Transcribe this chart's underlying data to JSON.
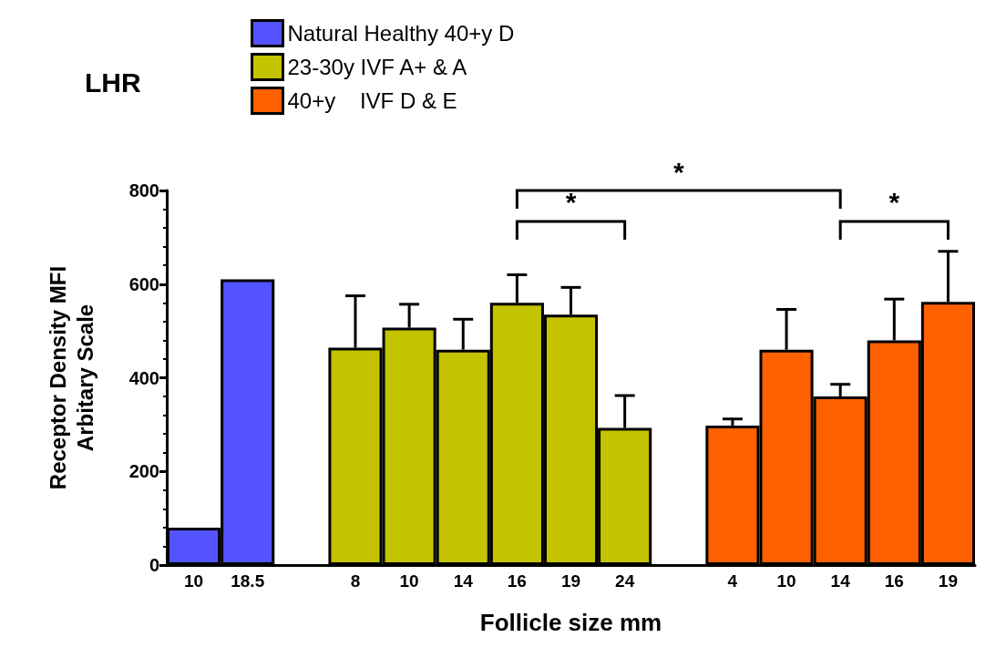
{
  "chart_data": {
    "type": "bar",
    "title": "LHR",
    "xlabel": "Follicle size mm",
    "ylabel": "Receptor Density MFI\nArbitary Scale",
    "categories": [
      "10",
      "18.5",
      null,
      "8",
      "10",
      "14",
      "16",
      "19",
      "24",
      null,
      "4",
      "10",
      "14",
      "16",
      "19"
    ],
    "series": [
      {
        "name": "Natural Healthy 40+y D",
        "color": "#5353ff",
        "values": [
          80,
          610,
          null,
          null,
          null,
          null,
          null,
          null,
          null,
          null,
          null,
          null,
          null,
          null,
          null
        ]
      },
      {
        "name": "23-30y IVF A+ & A",
        "color": "#c3c300",
        "values": [
          null,
          null,
          null,
          464,
          507,
          460,
          560,
          535,
          293,
          null,
          null,
          null,
          null,
          null,
          null
        ],
        "errors": [
          null,
          null,
          null,
          [
            464,
            575
          ],
          [
            507,
            557
          ],
          [
            460,
            525
          ],
          [
            560,
            620
          ],
          [
            535,
            593
          ],
          [
            293,
            362
          ],
          null,
          null,
          null,
          null,
          null,
          null
        ]
      },
      {
        "name": "40+y    IVF D & E",
        "color": "#ff6000",
        "values": [
          null,
          null,
          null,
          null,
          null,
          null,
          null,
          null,
          null,
          null,
          298,
          460,
          360,
          480,
          562
        ],
        "errors": [
          null,
          null,
          null,
          null,
          null,
          null,
          null,
          null,
          null,
          null,
          [
            298,
            312
          ],
          [
            460,
            546
          ],
          [
            360,
            386
          ],
          [
            480,
            568
          ],
          [
            562,
            670
          ]
        ]
      }
    ],
    "ylim": [
      0,
      800
    ],
    "yticks": [
      0,
      200,
      400,
      600,
      800
    ],
    "grid": false,
    "legend": "top left",
    "annotations": [
      "*",
      "*",
      "*"
    ]
  }
}
